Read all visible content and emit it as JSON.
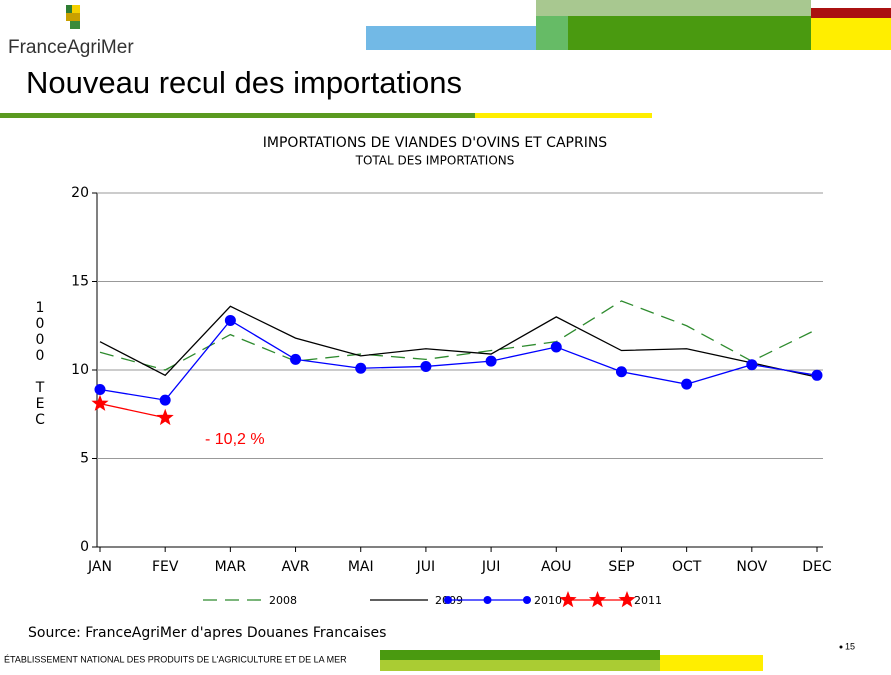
{
  "header": {
    "logo": "FranceAgriMer",
    "title": "Nouveau recul des importations"
  },
  "chart_data": {
    "type": "line",
    "title": "IMPORTATIONS DE VIANDES D'OVINS ET CAPRINS",
    "subtitle": "TOTAL DES IMPORTATIONS",
    "y_label": "1000 TEC",
    "categories": [
      "JAN",
      "FEV",
      "MAR",
      "AVR",
      "MAI",
      "JUI",
      "JUI",
      "AOU",
      "SEP",
      "OCT",
      "NOV",
      "DEC"
    ],
    "series": [
      {
        "name": "2008",
        "color": "#2e8b2e",
        "style": "dashed",
        "marker": "none",
        "values": [
          11.0,
          10.0,
          12.0,
          10.5,
          10.9,
          10.6,
          11.1,
          11.6,
          13.9,
          12.5,
          10.5,
          12.3
        ]
      },
      {
        "name": "2009",
        "color": "#000000",
        "style": "solid",
        "marker": "none",
        "values": [
          11.6,
          9.7,
          13.6,
          11.8,
          10.8,
          11.2,
          10.9,
          13.0,
          11.1,
          11.2,
          10.4,
          9.6
        ]
      },
      {
        "name": "2010",
        "color": "#0000ff",
        "style": "solid",
        "marker": "circle",
        "values": [
          8.9,
          8.3,
          12.8,
          10.6,
          10.1,
          10.2,
          10.5,
          11.3,
          9.9,
          9.2,
          10.3,
          9.7
        ]
      },
      {
        "name": "2011",
        "color": "#ff0000",
        "style": "solid",
        "marker": "star",
        "values": [
          8.1,
          7.3,
          null,
          null,
          null,
          null,
          null,
          null,
          null,
          null,
          null,
          null
        ]
      }
    ],
    "ylim": [
      0,
      20
    ],
    "yticks": [
      0,
      5,
      10,
      15,
      20
    ],
    "grid": true,
    "annotation": "- 10,2 %"
  },
  "source": "Source: FranceAgriMer d'apres Douanes Francaises",
  "footer": {
    "text": "ÉTABLISSEMENT NATIONAL DES PRODUITS DE L'AGRICULTURE ET DE LA MER",
    "page": "15"
  }
}
